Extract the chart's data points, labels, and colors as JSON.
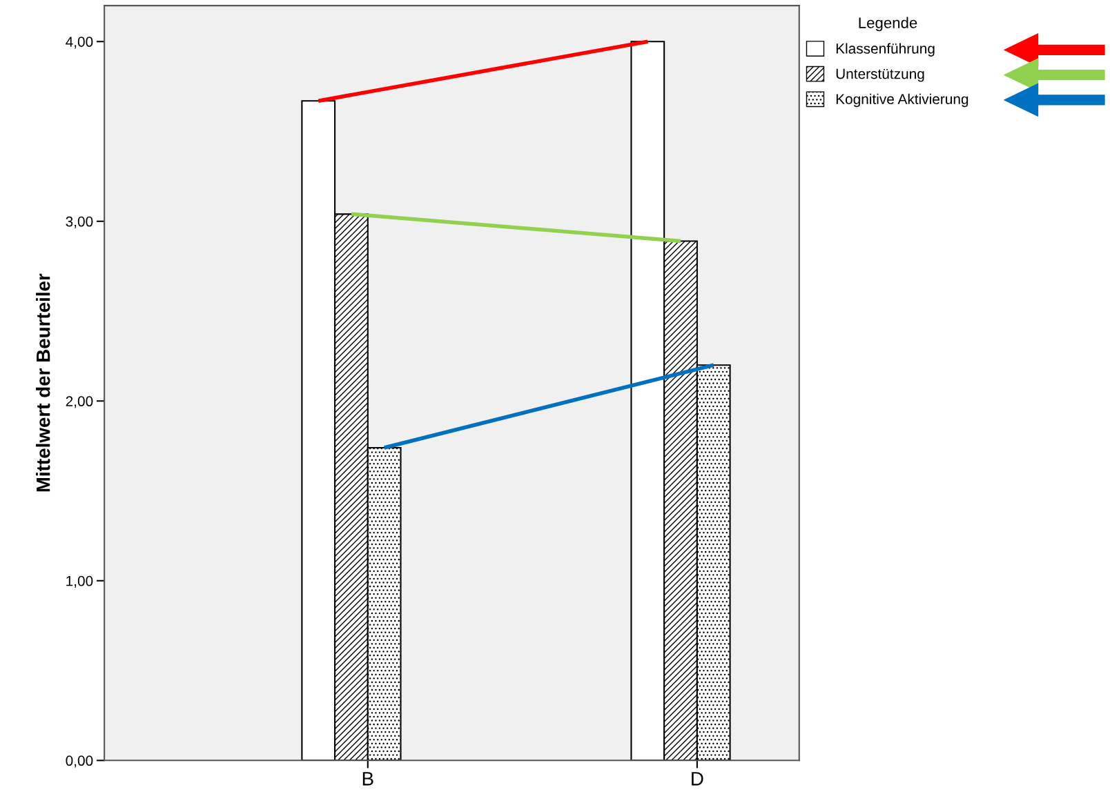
{
  "chart_data": {
    "type": "bar",
    "ylabel": "Mittelwert der Beurteiler",
    "legend_title": "Legende",
    "legend": "top right",
    "categories": [
      "B",
      "D"
    ],
    "series": [
      {
        "name": "Klassenführung",
        "color": "#ffffff",
        "values": [
          3.67,
          4.0
        ]
      },
      {
        "name": "Unterstützung",
        "color": "#000000",
        "values": [
          3.04,
          2.89
        ]
      },
      {
        "name": "Kognitive Aktivierung",
        "color": "#000000",
        "values": [
          1.74,
          2.2
        ]
      },
      {
        "type": "line",
        "color": "#ff0000",
        "values": [
          3.67,
          4.0
        ]
      },
      {
        "type": "line",
        "color": "#92d050",
        "values": [
          3.04,
          2.89
        ]
      },
      {
        "type": "line",
        "color": "#0070c0",
        "values": [
          1.74,
          2.2
        ]
      }
    ],
    "ylim": [
      0,
      4.2
    ],
    "yticks": [
      {
        "value": 0,
        "label": "0,00"
      },
      {
        "value": 1,
        "label": "1,00"
      },
      {
        "value": 2,
        "label": "2,00"
      },
      {
        "value": 3,
        "label": "3,00"
      },
      {
        "value": 4,
        "label": "4,00"
      }
    ],
    "grid": false
  }
}
